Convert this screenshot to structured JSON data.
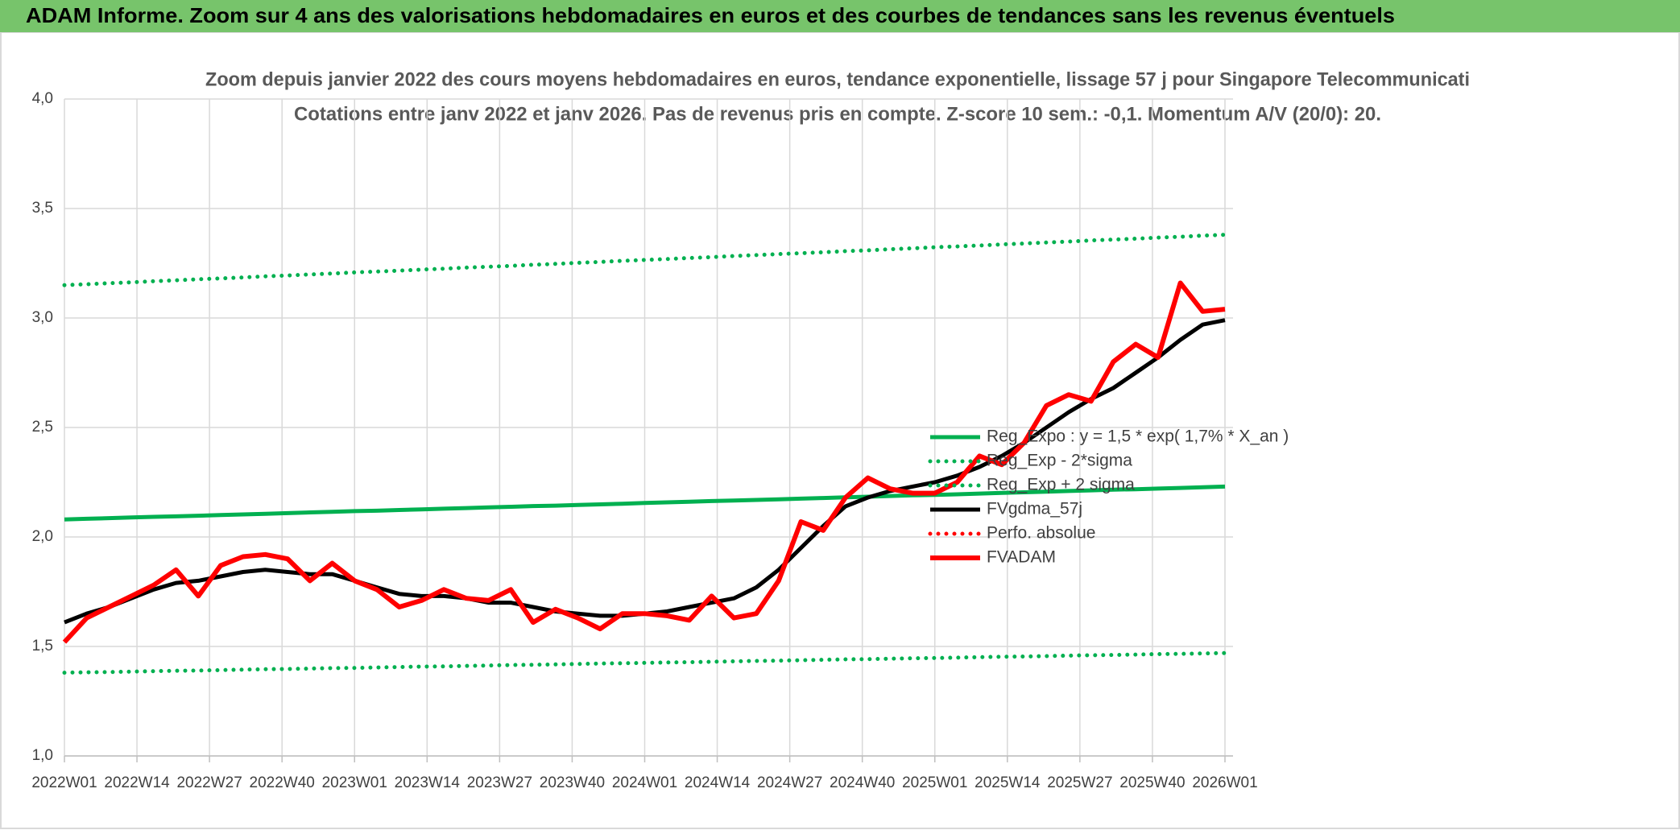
{
  "chart_data": {
    "type": "line",
    "header": "ADAM Informe. Zoom sur 4 ans des valorisations hebdomadaires en euros et des courbes de tendances sans les revenus éventuels",
    "title": "Zoom depuis janvier 2022 des cours moyens hebdomadaires en euros, tendance exponentielle, lissage 57 j pour Singapore Telecommunicati",
    "subtitle": "Cotations entre janv 2022 et janv 2026. Pas de revenus pris en compte. Z-score 10 sem.: -0,1. Momentum A/V (20/0): 20.",
    "x": [
      0,
      4,
      8,
      12,
      16,
      20,
      24,
      28,
      32,
      36,
      40,
      44,
      48,
      52,
      56,
      60,
      64,
      68,
      72,
      76,
      80,
      84,
      88,
      92,
      96,
      100,
      104,
      108,
      112,
      116,
      120,
      124,
      128,
      132,
      136,
      140,
      144,
      148,
      152,
      156,
      160,
      164,
      168,
      172,
      176,
      180,
      184,
      188,
      192,
      196,
      200,
      204,
      208
    ],
    "xlim": [
      0,
      208
    ],
    "xticks": [
      {
        "value": 0,
        "label": "2022W01"
      },
      {
        "value": 13,
        "label": "2022W14"
      },
      {
        "value": 26,
        "label": "2022W27"
      },
      {
        "value": 39,
        "label": "2022W40"
      },
      {
        "value": 52,
        "label": "2023W01"
      },
      {
        "value": 65,
        "label": "2023W14"
      },
      {
        "value": 78,
        "label": "2023W27"
      },
      {
        "value": 91,
        "label": "2023W40"
      },
      {
        "value": 104,
        "label": "2024W01"
      },
      {
        "value": 117,
        "label": "2024W14"
      },
      {
        "value": 130,
        "label": "2024W27"
      },
      {
        "value": 143,
        "label": "2024W40"
      },
      {
        "value": 156,
        "label": "2025W01"
      },
      {
        "value": 169,
        "label": "2025W14"
      },
      {
        "value": 182,
        "label": "2025W27"
      },
      {
        "value": 195,
        "label": "2025W40"
      },
      {
        "value": 208,
        "label": "2026W01"
      }
    ],
    "ylim": [
      1,
      4
    ],
    "yticks": [
      {
        "value": 1,
        "label": "1,0"
      },
      {
        "value": 1.5,
        "label": "1,5"
      },
      {
        "value": 2,
        "label": "2,0"
      },
      {
        "value": 2.5,
        "label": "2,5"
      },
      {
        "value": 3,
        "label": "3,0"
      },
      {
        "value": 3.5,
        "label": "3,5"
      },
      {
        "value": 4,
        "label": "4,0"
      }
    ],
    "grid": true,
    "legend": "lower-right",
    "series": [
      {
        "name": "Reg_Expo : y = 1,5 * exp( 1,7% *  X_an )",
        "color": "#00b050",
        "style": "solid",
        "values": [
          2.08,
          2.083,
          2.086,
          2.089,
          2.092,
          2.094,
          2.097,
          2.1,
          2.103,
          2.106,
          2.109,
          2.112,
          2.115,
          2.118,
          2.12,
          2.123,
          2.126,
          2.129,
          2.132,
          2.135,
          2.138,
          2.141,
          2.143,
          2.146,
          2.149,
          2.152,
          2.155,
          2.158,
          2.161,
          2.164,
          2.166,
          2.169,
          2.172,
          2.175,
          2.178,
          2.181,
          2.184,
          2.187,
          2.19,
          2.192,
          2.195,
          2.198,
          2.201,
          2.204,
          2.207,
          2.21,
          2.213,
          2.216,
          2.218,
          2.221,
          2.224,
          2.227,
          2.23
        ]
      },
      {
        "name": "Reg_Exp - 2*sigma",
        "color": "#00b050",
        "style": "dotted",
        "values": [
          1.38,
          1.382,
          1.383,
          1.385,
          1.387,
          1.389,
          1.39,
          1.392,
          1.394,
          1.396,
          1.397,
          1.399,
          1.401,
          1.402,
          1.404,
          1.406,
          1.408,
          1.409,
          1.411,
          1.413,
          1.415,
          1.416,
          1.418,
          1.42,
          1.422,
          1.423,
          1.425,
          1.427,
          1.428,
          1.43,
          1.432,
          1.434,
          1.435,
          1.437,
          1.439,
          1.441,
          1.442,
          1.444,
          1.446,
          1.447,
          1.449,
          1.451,
          1.453,
          1.454,
          1.456,
          1.458,
          1.46,
          1.461,
          1.463,
          1.465,
          1.466,
          1.468,
          1.47
        ]
      },
      {
        "name": "Reg_Exp + 2 sigma",
        "color": "#00b050",
        "style": "dotted",
        "values": [
          3.15,
          3.154,
          3.159,
          3.163,
          3.168,
          3.172,
          3.177,
          3.181,
          3.185,
          3.19,
          3.194,
          3.199,
          3.203,
          3.208,
          3.212,
          3.216,
          3.221,
          3.225,
          3.23,
          3.234,
          3.238,
          3.243,
          3.247,
          3.252,
          3.256,
          3.261,
          3.265,
          3.269,
          3.274,
          3.278,
          3.283,
          3.287,
          3.292,
          3.296,
          3.3,
          3.305,
          3.309,
          3.314,
          3.318,
          3.323,
          3.327,
          3.331,
          3.336,
          3.34,
          3.345,
          3.349,
          3.354,
          3.358,
          3.362,
          3.367,
          3.371,
          3.376,
          3.38
        ]
      },
      {
        "name": "FVgdma_57j",
        "color": "#000000",
        "style": "solid",
        "values": [
          1.61,
          1.65,
          1.68,
          1.72,
          1.76,
          1.79,
          1.8,
          1.82,
          1.84,
          1.85,
          1.84,
          1.83,
          1.83,
          1.8,
          1.77,
          1.74,
          1.73,
          1.73,
          1.72,
          1.7,
          1.7,
          1.68,
          1.66,
          1.65,
          1.64,
          1.64,
          1.65,
          1.66,
          1.68,
          1.7,
          1.72,
          1.77,
          1.85,
          1.95,
          2.05,
          2.14,
          2.18,
          2.21,
          2.23,
          2.25,
          2.28,
          2.32,
          2.37,
          2.43,
          2.5,
          2.57,
          2.63,
          2.68,
          2.75,
          2.82,
          2.9,
          2.97,
          2.99
        ]
      },
      {
        "name": "Perfo. absolue",
        "color": "#ff0000",
        "style": "dotted",
        "values": [
          null,
          null,
          null,
          null,
          null,
          null,
          null,
          null,
          null,
          null,
          null,
          null,
          null,
          null,
          null,
          null,
          null,
          null,
          null,
          null,
          null,
          null,
          null,
          null,
          null,
          null,
          null,
          null,
          null,
          null,
          null,
          null,
          null,
          null,
          null,
          null,
          null,
          null,
          null,
          null,
          null,
          null,
          null,
          null,
          null,
          null,
          null,
          null,
          null,
          null,
          null,
          null,
          null
        ]
      },
      {
        "name": "FVADAM",
        "color": "#ff0000",
        "style": "solid",
        "values": [
          1.52,
          1.63,
          1.68,
          1.73,
          1.78,
          1.85,
          1.73,
          1.87,
          1.91,
          1.92,
          1.9,
          1.8,
          1.88,
          1.8,
          1.76,
          1.68,
          1.71,
          1.76,
          1.72,
          1.71,
          1.76,
          1.61,
          1.67,
          1.63,
          1.58,
          1.65,
          1.65,
          1.64,
          1.62,
          1.73,
          1.63,
          1.65,
          1.8,
          2.07,
          2.03,
          2.18,
          2.27,
          2.22,
          2.2,
          2.2,
          2.25,
          2.37,
          2.33,
          2.43,
          2.6,
          2.65,
          2.62,
          2.8,
          2.88,
          2.82,
          3.16,
          3.03,
          3.04
        ]
      }
    ]
  }
}
